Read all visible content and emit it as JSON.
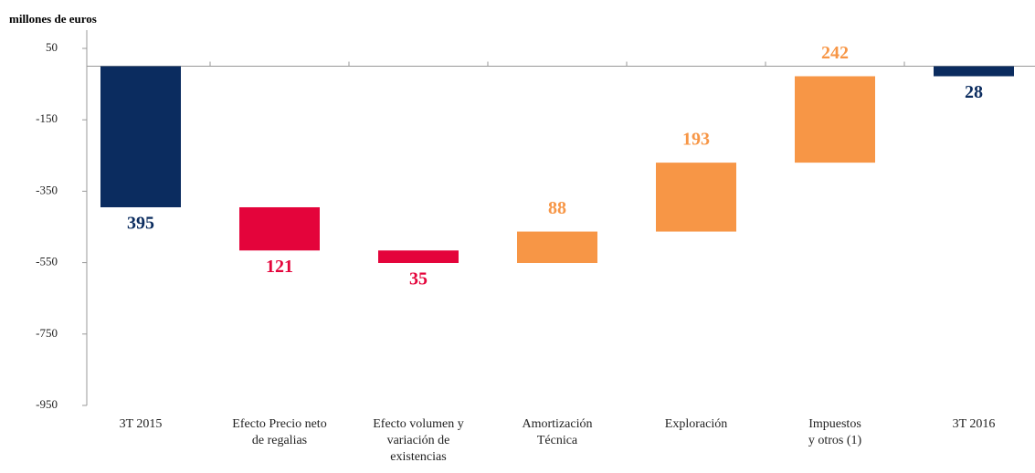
{
  "chart_data": {
    "type": "waterfall",
    "y_axis_title": "millones de euros",
    "categories": [
      "3T 2015",
      "Efecto Precio neto\nde regalias",
      "Efecto volumen y\nvariación de\nexistencias",
      "Amortización\nTécnica",
      "Exploración",
      "Impuestos\ny otros (1)",
      "3T 2016"
    ],
    "measure": [
      "absolute",
      "relative",
      "relative",
      "relative",
      "relative",
      "relative",
      "total"
    ],
    "values": [
      -395,
      -121,
      -35,
      88,
      193,
      242,
      -28
    ],
    "value_labels": [
      "395",
      "121",
      "35",
      "88",
      "193",
      "242",
      "28"
    ],
    "colors": [
      "#0b2c5f",
      "#e4043b",
      "#e4043b",
      "#f79646",
      "#f79646",
      "#f79646",
      "#0b2c5f"
    ],
    "ylim": [
      -950,
      50
    ],
    "yticks": [
      50,
      -150,
      -350,
      -550,
      -750,
      -950
    ]
  }
}
